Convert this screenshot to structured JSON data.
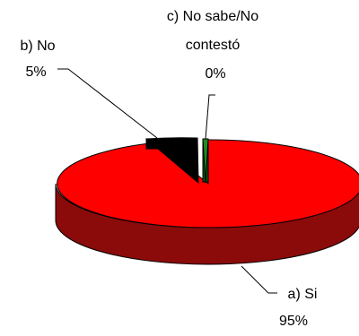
{
  "chart_data": {
    "type": "pie",
    "style": "3d",
    "title": "",
    "slices": [
      {
        "label": "a) Si",
        "value": 95,
        "value_label": "95%",
        "color": "#ff0000",
        "side_color": "#8b0a0a"
      },
      {
        "label": "b) No",
        "value": 5,
        "value_label": "5%",
        "color": "#000000",
        "side_color": "#000000"
      },
      {
        "label": "c) No sabe/No contestó",
        "label_lines": [
          "c) No sabe/No",
          "contestó"
        ],
        "value": 0,
        "value_label": "0%",
        "color": "#1e8c1e",
        "side_color": "#0e5a0e"
      }
    ],
    "legend": "none",
    "leader_lines": true
  }
}
